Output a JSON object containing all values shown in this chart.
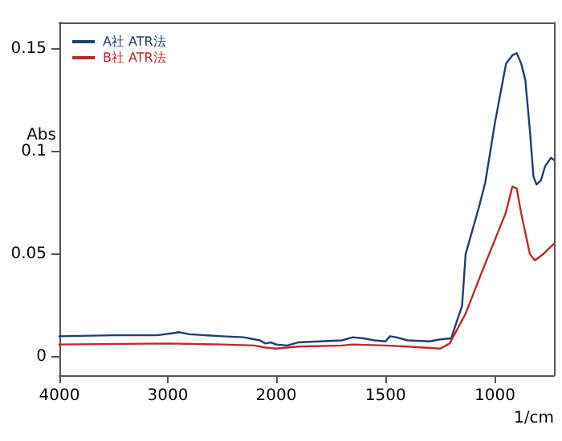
{
  "chart_data": [
    {
      "type": "line",
      "ylabel": "Abs",
      "xlim": [
        4000,
        2000
      ],
      "xticks": [
        4000,
        3000
      ],
      "ylim": [
        -0.009,
        0.163
      ],
      "yticks": [
        0,
        0.05,
        0.1,
        0.15
      ],
      "grid": false,
      "legend": "top left",
      "marker": "none",
      "line_style": "solid",
      "series": [
        {
          "name": "A社 ATR法",
          "color": "#1f3f73",
          "x": [
            4000,
            3500,
            3100,
            2950,
            2900,
            2800,
            2500,
            2300,
            2150,
            2100,
            2050,
            2000
          ],
          "values": [
            0.01,
            0.0105,
            0.0105,
            0.0115,
            0.012,
            0.011,
            0.01,
            0.0095,
            0.008,
            0.0065,
            0.007,
            0.006
          ]
        },
        {
          "name": "B社 ATR法",
          "color": "#c0282a",
          "x": [
            4000,
            3000,
            2500,
            2200,
            2100,
            2000
          ],
          "values": [
            0.006,
            0.0065,
            0.006,
            0.0055,
            0.0045,
            0.004
          ]
        }
      ]
    },
    {
      "type": "line",
      "xlabel": "1/cm",
      "xlim": [
        2000,
        730
      ],
      "xticks": [
        2000,
        1500,
        1000
      ],
      "ylim": [
        -0.009,
        0.163
      ],
      "tick_labels": "x",
      "grid": false,
      "marker": "none",
      "line_style": "solid",
      "series": [
        {
          "color": "#1f3f73",
          "x": [
            2000,
            1950,
            1900,
            1800,
            1700,
            1650,
            1600,
            1550,
            1500,
            1480,
            1450,
            1400,
            1300,
            1250,
            1200,
            1150,
            1134,
            1073,
            1044,
            1000,
            949,
            920,
            900,
            880,
            861,
            839,
            824,
            810,
            790,
            770,
            744,
            730
          ],
          "values": [
            0.006,
            0.0055,
            0.007,
            0.0075,
            0.008,
            0.0095,
            0.009,
            0.008,
            0.0075,
            0.01,
            0.0095,
            0.008,
            0.0075,
            0.0085,
            0.009,
            0.025,
            0.05,
            0.073,
            0.085,
            0.114,
            0.143,
            0.147,
            0.148,
            0.143,
            0.135,
            0.109,
            0.088,
            0.084,
            0.086,
            0.093,
            0.097,
            0.096
          ]
        },
        {
          "color": "#c0282a",
          "x": [
            2000,
            1900,
            1700,
            1650,
            1500,
            1400,
            1250,
            1207,
            1134,
            1061,
            1000,
            951,
            920,
            900,
            880,
            860,
            840,
            817,
            780,
            732
          ],
          "values": [
            0.004,
            0.005,
            0.0055,
            0.006,
            0.0055,
            0.005,
            0.004,
            0.0065,
            0.021,
            0.041,
            0.057,
            0.07,
            0.083,
            0.082,
            0.07,
            0.06,
            0.05,
            0.047,
            0.05,
            0.055
          ]
        }
      ]
    }
  ]
}
